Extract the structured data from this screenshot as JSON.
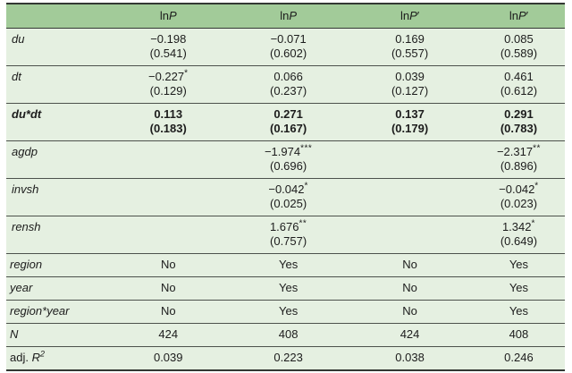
{
  "colors": {
    "header_bg": "#a2cb99",
    "row_bg": "#e5f0e1",
    "rule_dark": "#333833",
    "rule_inner": "#4c514c",
    "text": "#1c1c1c",
    "page_bg": "#ffffff"
  },
  "header": {
    "empty_label": "",
    "cols": [
      {
        "roman": "ln",
        "italic": "P",
        "prime": ""
      },
      {
        "roman": "ln",
        "italic": "P",
        "prime": ""
      },
      {
        "roman": "ln",
        "italic": "P",
        "prime": "′"
      },
      {
        "roman": "ln",
        "italic": "P",
        "prime": "′"
      }
    ]
  },
  "coef_rows": [
    {
      "label": "du",
      "cells": [
        {
          "coef": "−0.198",
          "stars": "",
          "se": "(0.541)"
        },
        {
          "coef": "−0.071",
          "stars": "",
          "se": "(0.602)"
        },
        {
          "coef": "0.169",
          "stars": "",
          "se": "(0.557)"
        },
        {
          "coef": "0.085",
          "stars": "",
          "se": "(0.589)"
        }
      ]
    },
    {
      "label": "dt",
      "cells": [
        {
          "coef": "−0.227",
          "stars": "*",
          "se": "(0.129)"
        },
        {
          "coef": "0.066",
          "stars": "",
          "se": "(0.237)"
        },
        {
          "coef": "0.039",
          "stars": "",
          "se": "(0.127)"
        },
        {
          "coef": "0.461",
          "stars": "",
          "se": "(0.612)"
        }
      ]
    },
    {
      "label": "du*dt",
      "cells": [
        {
          "coef": "0.113",
          "stars": "",
          "se": "(0.183)"
        },
        {
          "coef": "0.271",
          "stars": "",
          "se": "(0.167)"
        },
        {
          "coef": "0.137",
          "stars": "",
          "se": "(0.179)"
        },
        {
          "coef": "0.291",
          "stars": "",
          "se": "(0.783)"
        }
      ]
    },
    {
      "label": "agdp",
      "cells": [
        {
          "coef": "",
          "stars": "",
          "se": ""
        },
        {
          "coef": "−1.974",
          "stars": "***",
          "se": "(0.696)"
        },
        {
          "coef": "",
          "stars": "",
          "se": ""
        },
        {
          "coef": "−2.317",
          "stars": "**",
          "se": "(0.896)"
        }
      ]
    },
    {
      "label": "invsh",
      "cells": [
        {
          "coef": "",
          "stars": "",
          "se": ""
        },
        {
          "coef": "−0.042",
          "stars": "*",
          "se": "(0.025)"
        },
        {
          "coef": "",
          "stars": "",
          "se": ""
        },
        {
          "coef": "−0.042",
          "stars": "*",
          "se": "(0.023)"
        }
      ]
    },
    {
      "label": "rensh",
      "cells": [
        {
          "coef": "",
          "stars": "",
          "se": ""
        },
        {
          "coef": "1.676",
          "stars": "**",
          "se": "(0.757)"
        },
        {
          "coef": "",
          "stars": "",
          "se": ""
        },
        {
          "coef": "1.342",
          "stars": "*",
          "se": "(0.649)"
        }
      ]
    }
  ],
  "fe_rows": [
    {
      "label": "region",
      "values": [
        "No",
        "Yes",
        "No",
        "Yes"
      ]
    },
    {
      "label": "year",
      "values": [
        "No",
        "Yes",
        "No",
        "Yes"
      ]
    },
    {
      "label": "region*year",
      "values": [
        "No",
        "Yes",
        "No",
        "Yes"
      ]
    }
  ],
  "stat_rows": [
    {
      "label_roman": "",
      "label_italic": "N",
      "label_sup": "",
      "values": [
        "424",
        "408",
        "424",
        "408"
      ]
    },
    {
      "label_roman": "adj. ",
      "label_italic": "R",
      "label_sup": "2",
      "values": [
        "0.039",
        "0.223",
        "0.038",
        "0.246"
      ]
    }
  ]
}
